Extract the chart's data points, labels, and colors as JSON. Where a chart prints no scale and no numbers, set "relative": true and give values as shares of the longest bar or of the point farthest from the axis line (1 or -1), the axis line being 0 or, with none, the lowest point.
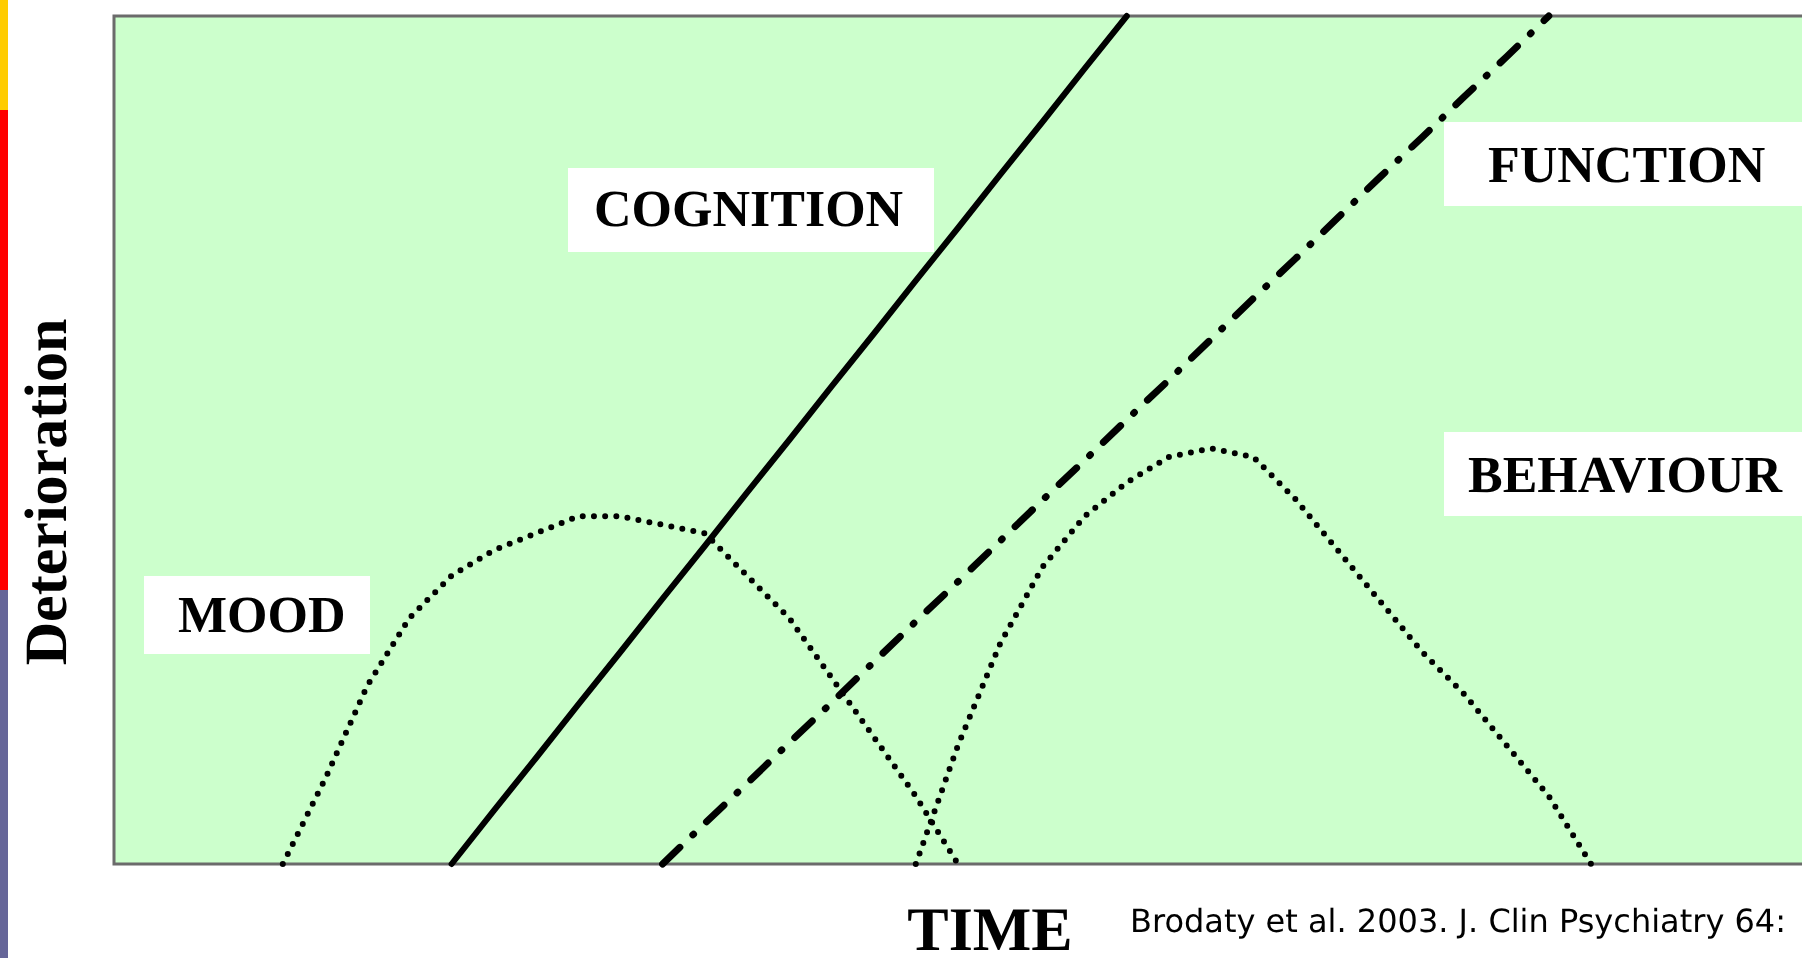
{
  "chart_data": {
    "type": "line",
    "relative": true,
    "xlabel": "TIME",
    "ylabel": "Deterioration",
    "annotations": [
      "Brodaty et al. 2003. J. Clin Psychiatry 64:"
    ],
    "tick_labels": false,
    "categories": [
      null,
      null,
      null,
      null,
      null,
      null,
      null,
      null,
      null,
      null,
      null,
      null,
      null,
      null,
      null,
      null,
      null,
      null,
      null,
      null,
      null,
      null,
      null,
      null,
      null,
      null,
      null,
      null,
      null,
      null,
      null,
      null,
      null,
      null,
      null,
      null,
      null,
      null,
      null,
      null,
      null
    ],
    "series": [
      {
        "name": "COGNITION",
        "color": "#000000",
        "line_style": "solid",
        "values": [
          null,
          null,
          null,
          null,
          null,
          null,
          null,
          null,
          0,
          0.063,
          0.125,
          0.188,
          0.25,
          0.313,
          0.375,
          0.438,
          0.5,
          0.563,
          0.625,
          0.688,
          0.75,
          0.813,
          0.875,
          0.938,
          1,
          null,
          null,
          null,
          null,
          null,
          null,
          null,
          null,
          null,
          null,
          null,
          null,
          null,
          null,
          null,
          null
        ]
      },
      {
        "name": "FUNCTION",
        "color": "#000000",
        "line_style": "dashdot",
        "values": [
          null,
          null,
          null,
          null,
          null,
          null,
          null,
          null,
          null,
          null,
          null,
          null,
          null,
          0,
          0.048,
          0.095,
          0.143,
          0.19,
          0.238,
          0.286,
          0.333,
          0.381,
          0.429,
          0.476,
          0.524,
          0.571,
          0.619,
          0.667,
          0.714,
          0.762,
          0.81,
          0.857,
          0.905,
          0.952,
          1,
          null,
          null,
          null,
          null,
          null,
          null
        ]
      },
      {
        "name": "BEHAVIOUR",
        "color": "#000000",
        "line_style": "dotted",
        "values": [
          null,
          null,
          null,
          null,
          null,
          null,
          null,
          null,
          null,
          null,
          null,
          null,
          null,
          null,
          null,
          null,
          null,
          null,
          null,
          0,
          0.14,
          0.26,
          0.35,
          0.41,
          0.45,
          0.48,
          0.49,
          0.48,
          0.43,
          0.37,
          0.31,
          0.25,
          0.2,
          0.14,
          0.08,
          0,
          null,
          null,
          null,
          null,
          null
        ]
      },
      {
        "name": "MOOD",
        "color": "#000000",
        "line_style": "dotted",
        "values": [
          null,
          null,
          null,
          null,
          0,
          0.1,
          0.21,
          0.29,
          0.34,
          0.37,
          0.39,
          0.41,
          0.41,
          0.4,
          0.39,
          0.34,
          0.29,
          0.22,
          0.15,
          0.08,
          0,
          null,
          null,
          null,
          null,
          null,
          null,
          null,
          null,
          null,
          null,
          null,
          null,
          null,
          null,
          null,
          null,
          null,
          null,
          null,
          null
        ]
      }
    ]
  }
}
